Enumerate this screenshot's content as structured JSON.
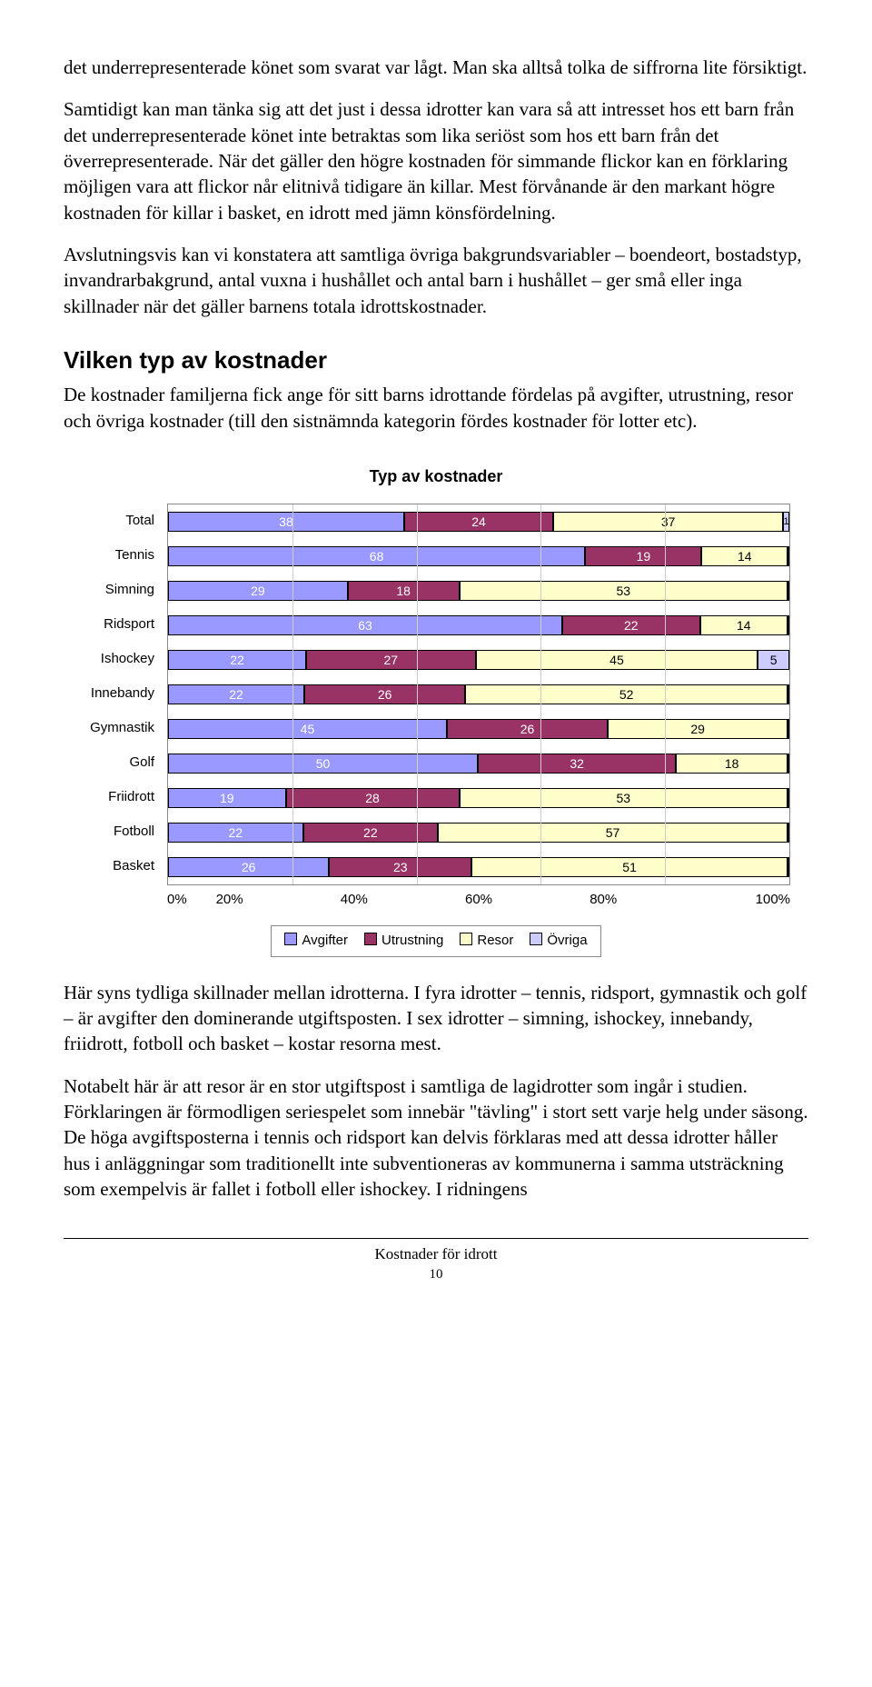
{
  "paragraphs": {
    "p1": "det underrepresenterade könet som svarat var lågt. Man ska alltså tolka de siffrorna lite försiktigt.",
    "p2": "Samtidigt kan man tänka sig att det just i dessa idrotter kan vara så att intresset hos ett barn från det underrepresenterade könet inte betraktas som lika seriöst som hos ett barn från det överrepresenterade. När det gäller den högre kostnaden för simmande flickor kan en förklaring möjligen vara att flickor når elitnivå tidigare än killar. Mest förvånande är den markant högre kostnaden för killar i basket, en idrott med jämn könsfördelning.",
    "p3": "Avslutningsvis kan vi konstatera att samtliga övriga bakgrundsvariabler – boendeort, bostadstyp, invandrarbakgrund, antal vuxna i hushållet och antal barn i hushållet – ger små eller inga skillnader när det gäller barnens totala idrottskostnader.",
    "h2": "Vilken typ av kostnader",
    "p4": "De kostnader familjerna fick ange för sitt barns idrottande fördelas på avgifter, utrustning, resor och övriga kostnader (till den sistnämnda kategorin fördes kostnader för lotter etc).",
    "p5": "Här syns tydliga skillnader mellan idrotterna. I fyra idrotter – tennis, ridsport, gymnastik och golf – är avgifter den dominerande utgiftsposten. I sex idrotter – simning, ishockey, innebandy, friidrott, fotboll och basket – kostar resorna mest.",
    "p6": "Notabelt här är att resor är en stor utgiftspost i samtliga de lagidrotter som ingår i studien. Förklaringen är förmodligen seriespelet som innebär \"tävling\" i stort sett varje helg under säsong. De höga avgiftsposterna i tennis och ridsport kan delvis förklaras med att dessa idrotter håller hus i anläggningar som traditionellt inte subventioneras av kommunerna i samma utsträckning som exempelvis är fallet i fotboll eller ishockey. I ridningens"
  },
  "chart": {
    "title": "Typ av kostnader",
    "type": "stacked-horizontal-bar",
    "colors": {
      "avgifter": "#9999ff",
      "utrustning": "#993366",
      "resor": "#ffffcc",
      "ovriga": "#ccccff",
      "grid": "#cccccc",
      "border": "#888888"
    },
    "legend": [
      "Avgifter",
      "Utrustning",
      "Resor",
      "Övriga"
    ],
    "xticks": [
      "0%",
      "20%",
      "40%",
      "60%",
      "80%",
      "100%"
    ],
    "categories": [
      "Total",
      "Tennis",
      "Simning",
      "Ridsport",
      "Ishockey",
      "Innebandy",
      "Gymnastik",
      "Golf",
      "Friidrott",
      "Fotboll",
      "Basket"
    ],
    "series": {
      "Total": {
        "avgifter": 38,
        "utrustning": 24,
        "resor": 37,
        "ovriga": 1
      },
      "Tennis": {
        "avgifter": 68,
        "utrustning": 19,
        "resor": 14,
        "ovriga": 0
      },
      "Simning": {
        "avgifter": 29,
        "utrustning": 18,
        "resor": 53,
        "ovriga": 0
      },
      "Ridsport": {
        "avgifter": 63,
        "utrustning": 22,
        "resor": 14,
        "ovriga": 0
      },
      "Ishockey": {
        "avgifter": 22,
        "utrustning": 27,
        "resor": 45,
        "ovriga": 5
      },
      "Innebandy": {
        "avgifter": 22,
        "utrustning": 26,
        "resor": 52,
        "ovriga": 0
      },
      "Gymnastik": {
        "avgifter": 45,
        "utrustning": 26,
        "resor": 29,
        "ovriga": 0
      },
      "Golf": {
        "avgifter": 50,
        "utrustning": 32,
        "resor": 18,
        "ovriga": 0
      },
      "Friidrott": {
        "avgifter": 19,
        "utrustning": 28,
        "resor": 53,
        "ovriga": 0
      },
      "Fotboll": {
        "avgifter": 22,
        "utrustning": 22,
        "resor": 57,
        "ovriga": 0
      },
      "Basket": {
        "avgifter": 26,
        "utrustning": 23,
        "resor": 51,
        "ovriga": 0
      }
    }
  },
  "footer": {
    "title": "Kostnader för idrott",
    "page": "10"
  }
}
